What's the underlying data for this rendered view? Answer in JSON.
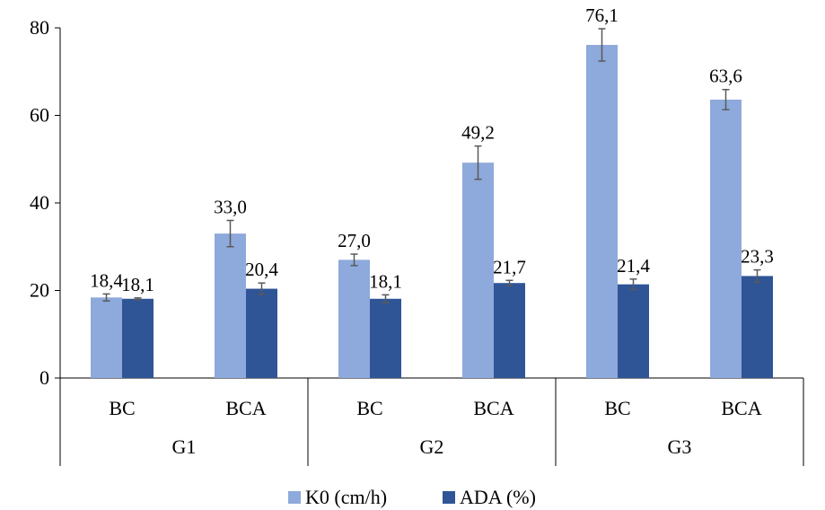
{
  "colors": {
    "k0": "#8EA9DB",
    "ada": "#2F5597",
    "error_bar": "#595959",
    "axis": "#000000",
    "grid_line": "#000000"
  },
  "chart_data": {
    "type": "bar",
    "title": "",
    "xlabel": "",
    "ylabel": "",
    "ylim": [
      0,
      80
    ],
    "yticks": [
      "0",
      "20",
      "40",
      "60",
      "80"
    ],
    "grid": false,
    "legend_position": "bottom",
    "groups": [
      {
        "label": "G1",
        "categories": [
          "BC",
          "BCA"
        ]
      },
      {
        "label": "G2",
        "categories": [
          "BC",
          "BCA"
        ]
      },
      {
        "label": "G3",
        "categories": [
          "BC",
          "BCA"
        ]
      }
    ],
    "series": [
      {
        "name": "K0 (cm/h)",
        "values": [
          18.4,
          33.0,
          27.0,
          49.2,
          76.1,
          63.6
        ],
        "labels": [
          "18,4",
          "33,0",
          "27,0",
          "49,2",
          "76,1",
          "63,6"
        ],
        "errors": [
          0.8,
          3.0,
          1.3,
          3.8,
          3.7,
          2.3
        ]
      },
      {
        "name": "ADA (%)",
        "values": [
          18.1,
          20.4,
          18.1,
          21.7,
          21.4,
          23.3
        ],
        "labels": [
          "18,1",
          "20,4",
          "18,1",
          "21,7",
          "21,4",
          "23,3"
        ],
        "errors": [
          0.2,
          1.3,
          0.9,
          0.6,
          1.2,
          1.4
        ]
      }
    ]
  }
}
